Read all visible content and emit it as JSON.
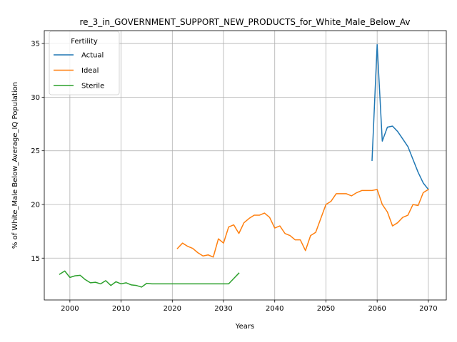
{
  "chart_data": {
    "type": "line",
    "title": "re_3_in_GOVERNMENT_SUPPORT_NEW_PRODUCTS_for_White_Male_Below_Av",
    "xlabel": "Years",
    "ylabel": "% of White_Male Below_Average_IQ Population",
    "xlim": [
      1995,
      2073.5
    ],
    "ylim": [
      11.1,
      36.2
    ],
    "xticks": [
      2000,
      2010,
      2020,
      2030,
      2040,
      2050,
      2060,
      2070
    ],
    "yticks": [
      15,
      20,
      25,
      30,
      35
    ],
    "grid": true,
    "legend": {
      "title": "Fertility",
      "placement": "top-left"
    },
    "series": [
      {
        "name": "Actual",
        "color": "#1f77b4",
        "x": [
          2059,
          2060,
          2061,
          2062,
          2063,
          2064,
          2065,
          2066,
          2067,
          2068,
          2069,
          2070
        ],
        "y": [
          24.1,
          34.9,
          25.9,
          27.2,
          27.3,
          26.8,
          26.1,
          25.4,
          24.2,
          23.0,
          22.0,
          21.4
        ]
      },
      {
        "name": "Ideal",
        "color": "#ff7f0e",
        "x": [
          2021,
          2022,
          2023,
          2024,
          2025,
          2026,
          2027,
          2028,
          2029,
          2030,
          2031,
          2032,
          2033,
          2034,
          2035,
          2036,
          2037,
          2038,
          2039,
          2040,
          2041,
          2042,
          2043,
          2044,
          2045,
          2046,
          2047,
          2048,
          2049,
          2050,
          2051,
          2052,
          2053,
          2054,
          2055,
          2056,
          2057,
          2058,
          2059,
          2060,
          2061,
          2062,
          2063,
          2064,
          2065,
          2066,
          2067,
          2068,
          2069,
          2070
        ],
        "y": [
          15.9,
          16.4,
          16.1,
          15.9,
          15.5,
          15.2,
          15.3,
          15.1,
          16.8,
          16.4,
          17.9,
          18.1,
          17.3,
          18.3,
          18.7,
          19.0,
          19.0,
          19.2,
          18.8,
          17.8,
          18.0,
          17.3,
          17.1,
          16.7,
          16.7,
          15.7,
          17.1,
          17.4,
          18.7,
          20.0,
          20.3,
          21.0,
          21.0,
          21.0,
          20.8,
          21.1,
          21.3,
          21.3,
          21.3,
          21.4,
          20.0,
          19.3,
          18.0,
          18.3,
          18.8,
          19.0,
          20.0,
          19.9,
          21.1,
          21.4
        ]
      },
      {
        "name": "Sterile",
        "color": "#2ca02c",
        "x": [
          1998,
          1999,
          2000,
          2001,
          2002,
          2003,
          2004,
          2005,
          2006,
          2007,
          2008,
          2009,
          2010,
          2011,
          2012,
          2013,
          2014,
          2015,
          2016,
          2017,
          2018,
          2019,
          2020,
          2021,
          2022,
          2023,
          2024,
          2025,
          2026,
          2027,
          2028,
          2029,
          2030,
          2031,
          2032,
          2033
        ],
        "y": [
          13.5,
          13.8,
          13.2,
          13.35,
          13.4,
          13.0,
          12.7,
          12.75,
          12.6,
          12.9,
          12.45,
          12.8,
          12.6,
          12.7,
          12.5,
          12.45,
          12.3,
          12.65,
          12.6,
          12.6,
          12.6,
          12.6,
          12.6,
          12.6,
          12.6,
          12.6,
          12.6,
          12.6,
          12.6,
          12.6,
          12.6,
          12.6,
          12.6,
          12.6,
          13.1,
          13.6
        ]
      }
    ]
  }
}
